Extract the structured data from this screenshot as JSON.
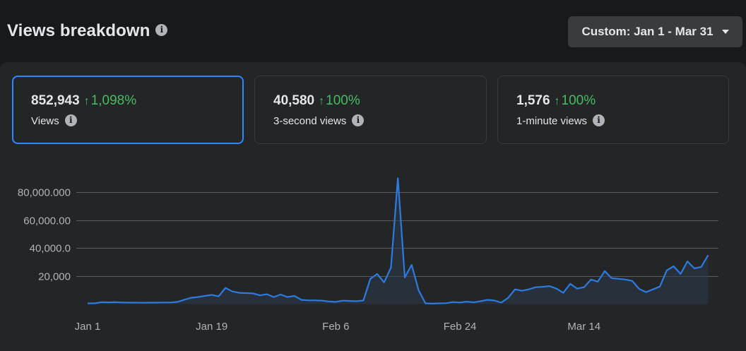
{
  "header": {
    "title": "Views breakdown",
    "info_icon": "info-icon",
    "date_range_label": "Custom: Jan 1 - Mar 31",
    "dropdown_icon": "caret-down-icon"
  },
  "metrics": [
    {
      "value": "852,943",
      "change": "1,098%",
      "label": "Views",
      "selected": true
    },
    {
      "value": "40,580",
      "change": "100%",
      "label": "3-second views",
      "selected": false
    },
    {
      "value": "1,576",
      "change": "100%",
      "label": "1-minute views",
      "selected": false
    }
  ],
  "colors": {
    "accent": "#2d88ff",
    "positive": "#45bd62",
    "line": "#2d7be0"
  },
  "chart_data": {
    "type": "area",
    "y_tick_labels": [
      "80,000.000",
      "60,000.00",
      "40,000.0",
      "20,000"
    ],
    "y_tick_values": [
      80000,
      60000,
      40000,
      20000
    ],
    "ylim": [
      0,
      80000
    ],
    "x_tick_labels": [
      "Jan 1",
      "Jan 19",
      "Feb 6",
      "Feb 24",
      "Mar 14"
    ],
    "x_tick_days": [
      0,
      18,
      36,
      54,
      72
    ],
    "grid": true,
    "series": [
      {
        "values": [
          500,
          500,
          1300,
          1200,
          1300,
          1100,
          1000,
          1000,
          900,
          1000,
          1000,
          1100,
          1100,
          1500,
          3000,
          4500,
          5000,
          5800,
          6500,
          5500,
          11500,
          9000,
          8000,
          7800,
          7600,
          6200,
          7000,
          5000,
          6800,
          5000,
          5800,
          3000,
          2700,
          2600,
          2400,
          1800,
          1500,
          2400,
          2200,
          2000,
          2500,
          18000,
          21500,
          15500,
          26000,
          90000,
          19000,
          28000,
          10000,
          500,
          300,
          500,
          600,
          1400,
          1100,
          1700,
          1200,
          2000,
          3000,
          2500,
          1000,
          4500,
          10500,
          9500,
          10500,
          12000,
          12300,
          12800,
          11000,
          8000,
          14500,
          11000,
          12000,
          17500,
          16000,
          23500,
          18500,
          18000,
          17500,
          16500,
          10800,
          8500,
          10500,
          12500,
          24000,
          27000,
          21500,
          30500,
          25500,
          26500,
          35000
        ]
      }
    ]
  }
}
